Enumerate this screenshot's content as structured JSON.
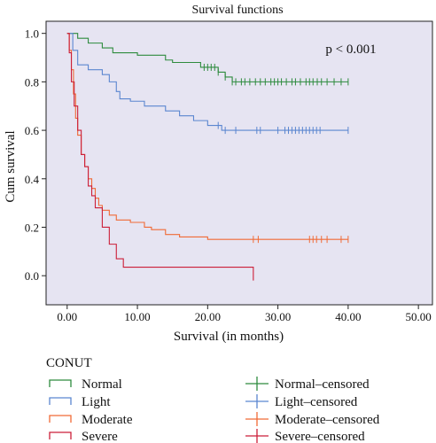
{
  "chart_data": {
    "type": "line",
    "title": "Survival functions",
    "xlabel": "Survival (in months)",
    "ylabel": "Cum survival",
    "annotation": "p < 0.001",
    "xlim": [
      -3,
      52
    ],
    "ylim": [
      -0.12,
      1.05
    ],
    "x_ticks": [
      0,
      10,
      20,
      30,
      40,
      50
    ],
    "x_tick_labels": [
      "0.00",
      "10.00",
      "20.00",
      "30.00",
      "40.00",
      "50.00"
    ],
    "y_ticks": [
      0.0,
      0.2,
      0.4,
      0.6,
      0.8,
      1.0
    ],
    "y_tick_labels": [
      "0.0",
      "0.2",
      "0.4",
      "0.6",
      "0.8",
      "1.0"
    ],
    "plot_background": "#e6e4f2",
    "legend_title": "CONUT",
    "legend_placement": "bottom",
    "series": [
      {
        "name": "Normal",
        "censored_label": "Normal–censored",
        "color": "#2e8b3e",
        "steps": [
          [
            0,
            1.0
          ],
          [
            1.5,
            0.98
          ],
          [
            3,
            0.96
          ],
          [
            5,
            0.94
          ],
          [
            6.5,
            0.92
          ],
          [
            10,
            0.91
          ],
          [
            14,
            0.89
          ],
          [
            15,
            0.88
          ],
          [
            19,
            0.86
          ],
          [
            21.5,
            0.84
          ],
          [
            22.5,
            0.82
          ],
          [
            23.5,
            0.8
          ],
          [
            40,
            0.8
          ]
        ],
        "censored_x": [
          19.5,
          20,
          20.5,
          21,
          21.5,
          22.5,
          23.5,
          24,
          24.8,
          25.3,
          26,
          26.8,
          27.5,
          28.2,
          29,
          29.5,
          30,
          30.5,
          31.2,
          32,
          32.5,
          33.2,
          34,
          34.5,
          35,
          35.6,
          36.2,
          37,
          38,
          39,
          40
        ]
      },
      {
        "name": "Light",
        "censored_label": "Light–censored",
        "color": "#5b86d0",
        "steps": [
          [
            0,
            1.0
          ],
          [
            0.8,
            0.93
          ],
          [
            1.5,
            0.87
          ],
          [
            3,
            0.85
          ],
          [
            5,
            0.83
          ],
          [
            6,
            0.8
          ],
          [
            7,
            0.76
          ],
          [
            7.5,
            0.73
          ],
          [
            9,
            0.72
          ],
          [
            11,
            0.7
          ],
          [
            14,
            0.68
          ],
          [
            16,
            0.66
          ],
          [
            18,
            0.64
          ],
          [
            20,
            0.62
          ],
          [
            22,
            0.6
          ],
          [
            40,
            0.6
          ]
        ],
        "censored_x": [
          21.5,
          22.5,
          24,
          27,
          27.5,
          30,
          31,
          31.5,
          32,
          32.5,
          33,
          33.5,
          34,
          34.5,
          35,
          35.5,
          36,
          40
        ]
      },
      {
        "name": "Moderate",
        "censored_label": "Moderate–censored",
        "color": "#f06a36",
        "steps": [
          [
            0,
            1.0
          ],
          [
            0.3,
            0.93
          ],
          [
            0.6,
            0.85
          ],
          [
            0.9,
            0.75
          ],
          [
            1.2,
            0.65
          ],
          [
            1.5,
            0.58
          ],
          [
            2,
            0.5
          ],
          [
            2.5,
            0.45
          ],
          [
            3,
            0.4
          ],
          [
            3.5,
            0.36
          ],
          [
            4,
            0.32
          ],
          [
            4.5,
            0.29
          ],
          [
            5,
            0.27
          ],
          [
            6,
            0.25
          ],
          [
            7,
            0.23
          ],
          [
            9,
            0.22
          ],
          [
            11,
            0.2
          ],
          [
            12,
            0.19
          ],
          [
            14,
            0.17
          ],
          [
            16,
            0.16
          ],
          [
            20,
            0.15
          ],
          [
            40,
            0.15
          ]
        ],
        "censored_x": [
          26.5,
          27.2,
          34.5,
          35,
          35.5,
          36.2,
          37,
          39,
          40
        ]
      },
      {
        "name": "Severe",
        "censored_label": "Severe–censored",
        "color": "#cc1f39",
        "steps": [
          [
            0,
            1.0
          ],
          [
            0.3,
            0.92
          ],
          [
            0.6,
            0.8
          ],
          [
            1,
            0.7
          ],
          [
            1.5,
            0.6
          ],
          [
            2,
            0.5
          ],
          [
            2.5,
            0.45
          ],
          [
            3,
            0.37
          ],
          [
            3.5,
            0.33
          ],
          [
            4,
            0.28
          ],
          [
            5,
            0.2
          ],
          [
            6,
            0.13
          ],
          [
            7,
            0.07
          ],
          [
            8,
            0.035
          ],
          [
            26.5,
            0.035
          ]
        ],
        "censored_x": [],
        "end_drop": [
          26.5,
          -0.02
        ]
      }
    ]
  }
}
